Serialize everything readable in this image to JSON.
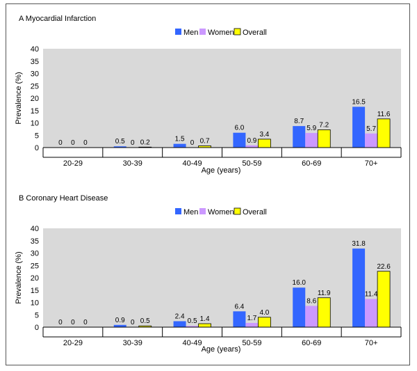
{
  "legend": {
    "men": "Men",
    "women": "Women",
    "overall": "Overall"
  },
  "colors": {
    "men": "#3366ff",
    "women": "#cc99ff",
    "overall": "#ffff00",
    "plot_bg": "#d9d9d9"
  },
  "chart_data": [
    {
      "type": "bar",
      "title": "A Myocardial Infarction",
      "xlabel": "Age (years)",
      "ylabel": "Prevalence (%)",
      "ylim": [
        0,
        40
      ],
      "yticks": [
        0,
        5,
        10,
        15,
        20,
        25,
        30,
        35,
        40
      ],
      "grid": false,
      "legend_position": "top-center",
      "categories": [
        "20-29",
        "30-39",
        "40-49",
        "50-59",
        "60-69",
        "70+"
      ],
      "series": [
        {
          "name": "Men",
          "values": [
            0,
            0.5,
            1.5,
            6.0,
            8.7,
            16.5
          ],
          "labels": [
            "0",
            "0.5",
            "1.5",
            "6.0",
            "8.7",
            "16.5"
          ]
        },
        {
          "name": "Women",
          "values": [
            0,
            0,
            0,
            0.9,
            5.9,
            5.7
          ],
          "labels": [
            "0",
            "0",
            "0",
            "0.9",
            "5.9",
            "5.7"
          ]
        },
        {
          "name": "Overall",
          "values": [
            0,
            0.2,
            0.7,
            3.4,
            7.2,
            11.6
          ],
          "labels": [
            "0",
            "0.2",
            "0.7",
            "3.4",
            "7.2",
            "11.6"
          ]
        }
      ]
    },
    {
      "type": "bar",
      "title": "B Coronary Heart Disease",
      "xlabel": "Age (years)",
      "ylabel": "Prevalence (%)",
      "ylim": [
        0,
        40
      ],
      "yticks": [
        0,
        5,
        10,
        15,
        20,
        25,
        30,
        35,
        40
      ],
      "grid": false,
      "legend_position": "top-center",
      "categories": [
        "20-29",
        "30-39",
        "40-49",
        "50-59",
        "60-69",
        "70+"
      ],
      "series": [
        {
          "name": "Men",
          "values": [
            0,
            0.9,
            2.4,
            6.4,
            16.0,
            31.8
          ],
          "labels": [
            "0",
            "0.9",
            "2.4",
            "6.4",
            "16.0",
            "31.8"
          ]
        },
        {
          "name": "Women",
          "values": [
            0,
            0,
            0.5,
            1.7,
            8.6,
            11.4
          ],
          "labels": [
            "0",
            "0",
            "0.5",
            "1.7",
            "8.6",
            "11.4"
          ]
        },
        {
          "name": "Overall",
          "values": [
            0,
            0.5,
            1.4,
            4.0,
            11.9,
            22.6
          ],
          "labels": [
            "0",
            "0.5",
            "1.4",
            "4.0",
            "11.9",
            "22.6"
          ]
        }
      ]
    }
  ]
}
